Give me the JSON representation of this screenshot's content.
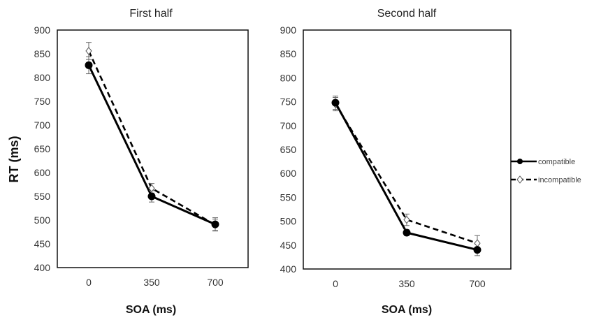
{
  "chart_data": [
    {
      "type": "line",
      "title": "First half",
      "xlabel": "SOA (ms)",
      "ylabel": "RT (ms)",
      "categories": [
        "0",
        "350",
        "700"
      ],
      "ylim": [
        400,
        900
      ],
      "yticks": [
        "400",
        "450",
        "500",
        "550",
        "600",
        "650",
        "700",
        "750",
        "800",
        "850",
        "900"
      ],
      "grid": false,
      "series": [
        {
          "name": "compatible",
          "values": [
            826,
            550,
            491
          ],
          "errors": [
            18,
            12,
            14
          ],
          "style": "solid",
          "marker": "filled-circle"
        },
        {
          "name": "incompatible",
          "values": [
            856,
            567,
            490
          ],
          "errors": [
            18,
            10,
            12
          ],
          "style": "dashed",
          "marker": "open-diamond"
        }
      ]
    },
    {
      "type": "line",
      "title": "Second half",
      "xlabel": "SOA (ms)",
      "ylabel": "",
      "categories": [
        "0",
        "350",
        "700"
      ],
      "ylim": [
        400,
        900
      ],
      "yticks": [
        "400",
        "450",
        "500",
        "550",
        "600",
        "650",
        "700",
        "750",
        "800",
        "850",
        "900"
      ],
      "grid": false,
      "legend": "right",
      "series": [
        {
          "name": "compatible",
          "values": [
            748,
            476,
            440
          ],
          "errors": [
            14,
            6,
            12
          ],
          "style": "solid",
          "marker": "filled-circle"
        },
        {
          "name": "incompatible",
          "values": [
            745,
            503,
            454
          ],
          "errors": [
            14,
            12,
            16
          ],
          "style": "dashed",
          "marker": "open-diamond"
        }
      ]
    }
  ],
  "colors": {
    "line": "#000000",
    "frame": "#111111",
    "errorbar": "#666666"
  }
}
